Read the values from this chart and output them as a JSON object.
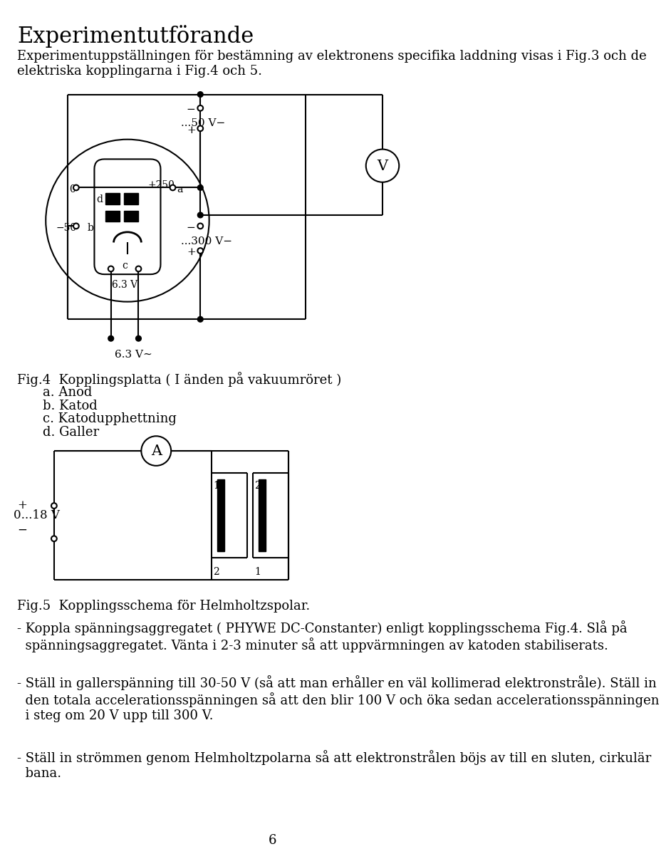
{
  "title": "Experimentutförande",
  "para1": "Experimentuppställningen för bestämning av elektronens specifika laddning visas i Fig.3 och de\nelektriska kopplingarna i Fig.4 och 5.",
  "fig4_caption_main": "Fig.4  Kopplingsplatta ( I änden på vakuumröret )",
  "fig4_caption_a": "a. Anod",
  "fig4_caption_b": "b. Katod",
  "fig4_caption_c": "c. Katodupphettning",
  "fig4_caption_d": "d. Galler",
  "fig5_caption": "Fig.5  Kopplingsschema för Helmholtzspolar.",
  "para2": "- Koppla spänningsaggregatet ( PHYWE DC-Constanter) enligt kopplingsschema Fig.4. Slå på\n  spänningsaggregatet. Vänta i 2-3 minuter så att uppvärmningen av katoden stabiliserats.",
  "para3": "- Ställ in gallerspänning till 30-50 V (så att man erhåller en väl kollimerad elektronstråle). Ställ in\n  den totala accelerationsspänningen så att den blir 100 V och öka sedan accelerationsspänningen\n  i steg om 20 V upp till 300 V.",
  "para4": "- Ställ in strömmen genom Helmholtzpolarna så att elektronstrålen böjs av till en sluten, cirkulär\n  bana.",
  "page_number": "6",
  "bg_color": "#ffffff",
  "text_color": "#000000"
}
